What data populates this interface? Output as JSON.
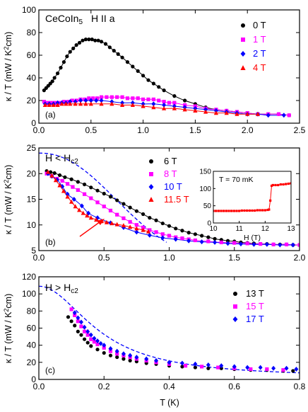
{
  "chart_data": [
    {
      "type": "scatter",
      "panel_label": "(a)",
      "title": "CeCoIn5   H II a",
      "title_main": "CeCoIn",
      "title_sub": "5",
      "title_tail": "H II a",
      "ylabel": "κ / T (mW / K²cm)",
      "xlim": [
        0,
        2.5
      ],
      "ylim": [
        0,
        100
      ],
      "xticks": [
        "0.0",
        "0.5",
        "1.0",
        "1.5",
        "2.0",
        "2.5"
      ],
      "yticks": [
        "0",
        "20",
        "40",
        "60",
        "80",
        "100"
      ],
      "legend_position": "top-right",
      "series": [
        {
          "name": "0 T",
          "color": "#000000",
          "marker": "circle",
          "x": [
            0.05,
            0.07,
            0.09,
            0.11,
            0.13,
            0.15,
            0.18,
            0.21,
            0.24,
            0.27,
            0.3,
            0.33,
            0.36,
            0.39,
            0.42,
            0.45,
            0.48,
            0.51,
            0.54,
            0.57,
            0.6,
            0.64,
            0.68,
            0.72,
            0.76,
            0.8,
            0.85,
            0.9,
            0.95,
            1.0,
            1.05,
            1.1,
            1.15,
            1.2,
            1.3,
            1.4,
            1.5,
            1.6,
            1.7,
            1.8,
            1.9,
            2.0,
            2.1,
            2.2,
            2.3,
            2.4
          ],
          "y": [
            29,
            31,
            33,
            35,
            37,
            40,
            44,
            49,
            54,
            59,
            63,
            66,
            69,
            71,
            73,
            74,
            74,
            74,
            73,
            73,
            72,
            70,
            67,
            64,
            61,
            58,
            54,
            50,
            46,
            42,
            38,
            35,
            32,
            29,
            24,
            20,
            17,
            14,
            12,
            11,
            10,
            9,
            8,
            8,
            8,
            7
          ]
        },
        {
          "name": "1 T",
          "color": "#ff00ff",
          "marker": "square",
          "x": [
            0.05,
            0.08,
            0.11,
            0.14,
            0.17,
            0.2,
            0.24,
            0.28,
            0.32,
            0.36,
            0.4,
            0.44,
            0.48,
            0.52,
            0.56,
            0.6,
            0.65,
            0.7,
            0.75,
            0.8,
            0.85,
            0.9,
            0.95,
            1.0,
            1.05,
            1.1,
            1.15,
            1.2,
            1.25,
            1.3,
            1.4,
            1.5,
            1.6,
            1.7,
            1.8,
            1.9,
            2.0,
            2.1,
            2.2,
            2.3,
            2.4
          ],
          "y": [
            19,
            18,
            18,
            18,
            18,
            18,
            19,
            19,
            20,
            20,
            21,
            21,
            22,
            22,
            22,
            23,
            23,
            23,
            23,
            23,
            22,
            22,
            22,
            21,
            21,
            21,
            20,
            19,
            18,
            18,
            16,
            15,
            13,
            12,
            11,
            10,
            9,
            8,
            8,
            8,
            7
          ]
        },
        {
          "name": "2 T",
          "color": "#0000ff",
          "marker": "diamond",
          "x": [
            0.06,
            0.1,
            0.14,
            0.18,
            0.22,
            0.26,
            0.3,
            0.35,
            0.4,
            0.45,
            0.5,
            0.55,
            0.6,
            0.7,
            0.8,
            0.9,
            1.0,
            1.1,
            1.2,
            1.3,
            1.4,
            1.5,
            1.6,
            1.7,
            1.8,
            1.9,
            2.0,
            2.1,
            2.2,
            2.35
          ],
          "y": [
            17,
            17,
            17,
            18,
            18,
            18,
            19,
            19,
            20,
            20,
            20,
            20,
            20,
            19,
            18,
            18,
            17,
            17,
            16,
            15,
            14,
            13,
            12,
            11,
            10,
            9,
            8,
            8,
            7,
            7
          ]
        },
        {
          "name": "4 T",
          "color": "#ff0000",
          "marker": "triangle",
          "x": [
            0.06,
            0.1,
            0.14,
            0.18,
            0.22,
            0.26,
            0.3,
            0.35,
            0.4,
            0.45,
            0.5,
            0.6,
            0.7,
            0.8,
            0.9,
            1.0,
            1.1,
            1.2,
            1.3,
            1.4,
            1.5,
            1.6,
            1.7,
            1.8,
            1.9,
            2.0,
            2.1
          ],
          "y": [
            16,
            16,
            16,
            16,
            17,
            17,
            17,
            17,
            17,
            17,
            17,
            17,
            17,
            16,
            16,
            15,
            14,
            13,
            13,
            12,
            11,
            10,
            9,
            9,
            8,
            8,
            8
          ]
        }
      ]
    },
    {
      "type": "scatter",
      "panel_label": "(b)",
      "title": "H < Hc2",
      "title_main": "H < H",
      "title_sub": "c2",
      "ylabel": "κ / T (mW / K²cm)",
      "xlim": [
        0,
        2
      ],
      "ylim": [
        5,
        25
      ],
      "xticks": [
        "0.0",
        "0.5",
        "1.0",
        "1.5",
        "2.0"
      ],
      "yticks": [
        "5",
        "10",
        "15",
        "20",
        "25"
      ],
      "legend_position": "top-center",
      "series": [
        {
          "name": "6 T",
          "color": "#000000",
          "marker": "circle",
          "x": [
            0.06,
            0.09,
            0.12,
            0.16,
            0.2,
            0.25,
            0.3,
            0.35,
            0.4,
            0.45,
            0.5,
            0.55,
            0.6,
            0.65,
            0.7,
            0.75,
            0.8,
            0.85,
            0.9,
            0.95,
            1.0,
            1.05,
            1.1,
            1.15,
            1.2,
            1.25,
            1.3,
            1.35,
            1.4,
            1.45,
            1.5,
            1.55,
            1.6,
            1.65,
            1.7,
            1.75,
            1.8,
            1.85,
            1.9,
            1.95,
            2.0
          ],
          "y": [
            20.5,
            20.3,
            20.1,
            19.7,
            19.3,
            18.9,
            18.4,
            17.9,
            17.3,
            16.7,
            16.1,
            15.5,
            14.8,
            14.1,
            13.4,
            12.7,
            12.1,
            11.4,
            10.9,
            10.3,
            9.8,
            9.3,
            8.9,
            8.5,
            8.2,
            7.9,
            7.6,
            7.3,
            7.1,
            6.9,
            6.8,
            6.6,
            6.5,
            6.4,
            6.3,
            6.3,
            6.2,
            6.2,
            6.2,
            6.1,
            6.1
          ]
        },
        {
          "name": "8 T",
          "color": "#ff00ff",
          "marker": "square",
          "x": [
            0.06,
            0.1,
            0.14,
            0.18,
            0.22,
            0.26,
            0.3,
            0.35,
            0.4,
            0.45,
            0.5,
            0.55,
            0.6,
            0.65,
            0.7,
            0.75,
            0.8,
            0.85,
            0.9,
            0.95,
            1.0,
            1.05,
            1.1,
            1.15,
            1.2,
            1.3,
            1.4,
            1.5,
            1.6,
            1.7,
            1.8,
            1.9,
            2.0
          ],
          "y": [
            20.0,
            19.5,
            19.0,
            18.6,
            18.0,
            17.4,
            16.8,
            16.0,
            15.2,
            14.4,
            13.6,
            12.8,
            12.0,
            11.3,
            10.6,
            10.0,
            9.5,
            9.0,
            8.6,
            8.2,
            7.9,
            7.6,
            7.4,
            7.2,
            7.0,
            6.8,
            6.6,
            6.5,
            6.4,
            6.3,
            6.2,
            6.2,
            6.1
          ]
        },
        {
          "name": "10 T",
          "color": "#0000ff",
          "marker": "diamond",
          "x": [
            0.07,
            0.1,
            0.14,
            0.18,
            0.22,
            0.27,
            0.33,
            0.38,
            0.45,
            0.55,
            0.65,
            0.75,
            0.85,
            0.95,
            1.05,
            1.15,
            1.25,
            1.35,
            1.45,
            1.55,
            1.65,
            1.75,
            1.85,
            1.95
          ],
          "y": [
            20.0,
            19.5,
            18.8,
            17.5,
            16.0,
            15.0,
            13.7,
            12.3,
            11.4,
            10.4,
            9.5,
            8.6,
            8.0,
            7.5,
            7.2,
            6.9,
            6.7,
            6.6,
            6.4,
            6.3,
            6.2,
            6.2,
            6.1,
            6.1
          ]
        },
        {
          "name": "11.5 T",
          "color": "#ff0000",
          "marker": "triangle",
          "x": [
            0.07,
            0.1,
            0.13,
            0.16,
            0.19,
            0.22,
            0.25,
            0.28,
            0.31,
            0.34,
            0.37,
            0.4,
            0.44,
            0.48,
            0.52,
            0.56,
            0.6,
            0.65,
            0.7,
            0.75,
            0.8,
            0.84
          ],
          "y": [
            20.3,
            19.6,
            18.7,
            17.7,
            16.6,
            15.5,
            14.5,
            13.6,
            12.9,
            12.3,
            11.8,
            11.4,
            11.0,
            10.7,
            10.5,
            10.3,
            10.1,
            9.9,
            9.6,
            9.3,
            9.0,
            8.7
          ]
        }
      ],
      "inset": {
        "label": "T = 70 mK",
        "xlabel": "H (T)",
        "xlim": [
          10,
          13
        ],
        "ylim": [
          0,
          150
        ],
        "xticks": [
          "10",
          "11",
          "12",
          "13"
        ],
        "yticks": [
          "0",
          "50",
          "100",
          "150"
        ],
        "color": "#ff0000",
        "x": [
          10.0,
          10.1,
          10.2,
          10.3,
          10.4,
          10.5,
          10.6,
          10.7,
          10.8,
          10.9,
          11.0,
          11.1,
          11.2,
          11.3,
          11.4,
          11.5,
          11.6,
          11.7,
          11.8,
          11.9,
          12.0,
          12.1,
          12.15,
          12.2,
          12.25,
          12.3,
          12.4,
          12.5,
          12.6,
          12.7,
          12.8,
          12.9,
          13.0
        ],
        "y": [
          35,
          35,
          35,
          35,
          35,
          35,
          35,
          35,
          35,
          35,
          35,
          36,
          36,
          36,
          36,
          36,
          36,
          37,
          37,
          37,
          37,
          38,
          39,
          65,
          108,
          110,
          110,
          110,
          112,
          112,
          113,
          114,
          115
        ]
      }
    },
    {
      "type": "scatter",
      "panel_label": "(c)",
      "title": "H > Hc2",
      "title_main": "H > H",
      "title_sub": "c2",
      "xlabel": "T (K)",
      "ylabel": "κ / T (mW / K²cm)",
      "xlim": [
        0,
        0.8
      ],
      "ylim": [
        0,
        120
      ],
      "xticks": [
        "0.0",
        "0.2",
        "0.4",
        "0.6",
        "0.8"
      ],
      "yticks": [
        "0",
        "20",
        "40",
        "60",
        "80",
        "100",
        "120"
      ],
      "legend_position": "top-right",
      "series": [
        {
          "name": "13 T",
          "color": "#000000",
          "marker": "circle",
          "x": [
            0.09,
            0.1,
            0.11,
            0.12,
            0.13,
            0.14,
            0.15,
            0.16,
            0.18,
            0.2,
            0.22,
            0.24,
            0.26,
            0.28,
            0.3,
            0.33,
            0.36,
            0.4,
            0.44,
            0.48,
            0.52,
            0.56,
            0.6,
            0.65,
            0.7,
            0.75,
            0.78
          ],
          "y": [
            73,
            68,
            63,
            56,
            52,
            47,
            43,
            39,
            35,
            31,
            28,
            26,
            24,
            22,
            21,
            19,
            18,
            16,
            15,
            14,
            13,
            13,
            12,
            11,
            11,
            10,
            10
          ]
        },
        {
          "name": "15 T",
          "color": "#ff00ff",
          "marker": "square",
          "x": [
            0.1,
            0.11,
            0.12,
            0.13,
            0.14,
            0.15,
            0.16,
            0.17,
            0.18,
            0.2,
            0.22,
            0.24,
            0.26,
            0.28,
            0.3,
            0.33,
            0.36,
            0.4,
            0.45,
            0.5,
            0.55,
            0.6,
            0.65,
            0.7,
            0.75
          ],
          "y": [
            82,
            75,
            68,
            62,
            56,
            52,
            47,
            44,
            41,
            37,
            33,
            30,
            28,
            26,
            24,
            22,
            20,
            18,
            16,
            15,
            14,
            13,
            12,
            12,
            11
          ]
        },
        {
          "name": "17 T",
          "color": "#0000ff",
          "marker": "diamond",
          "x": [
            0.11,
            0.12,
            0.13,
            0.14,
            0.15,
            0.16,
            0.17,
            0.18,
            0.19,
            0.2,
            0.22,
            0.24,
            0.26,
            0.28,
            0.3,
            0.33,
            0.36,
            0.4,
            0.44,
            0.48,
            0.52,
            0.56,
            0.6,
            0.64,
            0.68,
            0.72,
            0.76,
            0.79
          ],
          "y": [
            78,
            72,
            67,
            61,
            56,
            52,
            48,
            45,
            42,
            40,
            36,
            33,
            30,
            28,
            26,
            24,
            22,
            20,
            19,
            18,
            17,
            16,
            15,
            14,
            14,
            13,
            13,
            12
          ]
        }
      ]
    }
  ]
}
